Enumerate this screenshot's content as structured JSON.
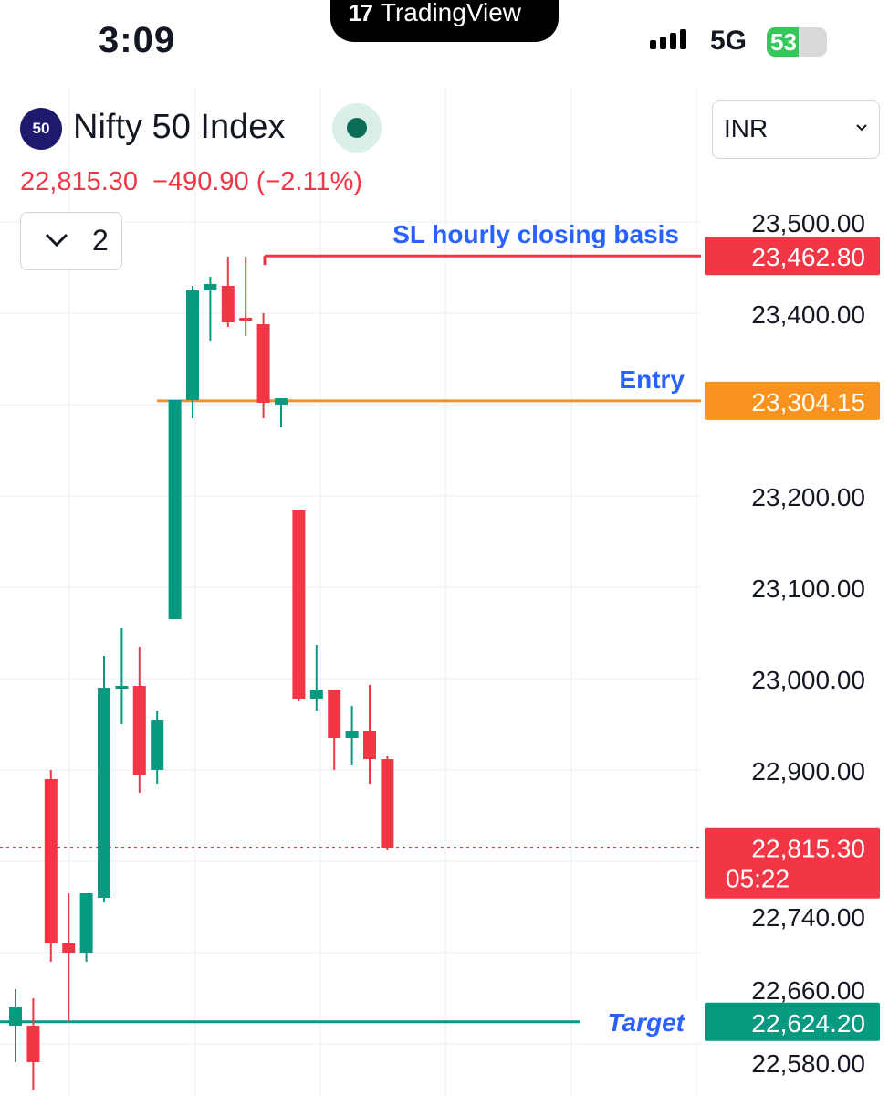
{
  "status_bar": {
    "time": "3:09",
    "app_pill": "TradingView",
    "network": "5G",
    "battery": "53"
  },
  "header": {
    "symbol_badge": "50",
    "title": "Nifty 50 Index",
    "price": "22,815.30",
    "change": "−490.90 (−2.11%)",
    "collapse_count": "2",
    "currency": "INR"
  },
  "colors": {
    "up": "#089981",
    "down": "#f23645",
    "entry": "#f7931e",
    "annotation": "#2962ff"
  },
  "annotations": {
    "sl_label": "SL hourly closing basis",
    "entry_label": "Entry",
    "target_label": "Target"
  },
  "chart_data": {
    "type": "candlestick",
    "yticks": [
      23500,
      23400,
      23200,
      23100,
      23000,
      22900,
      22740,
      22660,
      22580
    ],
    "ytick_labels": [
      "23,500.00",
      "23,400.00",
      "23,200.00",
      "23,100.00",
      "23,000.00",
      "22,900.00",
      "22,740.00",
      "22,660.00",
      "22,580.00"
    ],
    "levels": [
      {
        "name": "SL",
        "value": 23462.8,
        "label": "23,462.80",
        "color": "#f23645"
      },
      {
        "name": "Entry",
        "value": 23304.15,
        "label": "23,304.15",
        "color": "#f7931e"
      },
      {
        "name": "Target",
        "value": 22624.2,
        "label": "22,624.20",
        "color": "#089981"
      }
    ],
    "last_price": {
      "value": 22815.3,
      "label": "22,815.30",
      "countdown": "05:22"
    },
    "candles": [
      {
        "o": 22620,
        "h": 22660,
        "l": 22580,
        "c": 22640
      },
      {
        "o": 22620,
        "h": 22650,
        "l": 22550,
        "c": 22580
      },
      {
        "o": 22890,
        "h": 22900,
        "l": 22690,
        "c": 22710
      },
      {
        "o": 22710,
        "h": 22765,
        "l": 22625,
        "c": 22700
      },
      {
        "o": 22700,
        "h": 22765,
        "l": 22690,
        "c": 22765
      },
      {
        "o": 22760,
        "h": 23025,
        "l": 22755,
        "c": 22990
      },
      {
        "o": 22990,
        "h": 23055,
        "l": 22950,
        "c": 22992
      },
      {
        "o": 22992,
        "h": 23035,
        "l": 22875,
        "c": 22895
      },
      {
        "o": 22900,
        "h": 22965,
        "l": 22885,
        "c": 22955
      },
      {
        "o": 23065,
        "h": 23305,
        "l": 23065,
        "c": 23305
      },
      {
        "o": 23305,
        "h": 23430,
        "l": 23285,
        "c": 23425
      },
      {
        "o": 23425,
        "h": 23440,
        "l": 23370,
        "c": 23432
      },
      {
        "o": 23430,
        "h": 23462,
        "l": 23385,
        "c": 23390
      },
      {
        "o": 23395,
        "h": 23462,
        "l": 23375,
        "c": 23392
      },
      {
        "o": 23388,
        "h": 23400,
        "l": 23285,
        "c": 23302
      },
      {
        "o": 23300,
        "h": 23307,
        "l": 23275,
        "c": 23307
      },
      {
        "o": 23185,
        "h": 23185,
        "l": 22975,
        "c": 22978
      },
      {
        "o": 22978,
        "h": 23037,
        "l": 22965,
        "c": 22988
      },
      {
        "o": 22988,
        "h": 22988,
        "l": 22900,
        "c": 22935
      },
      {
        "o": 22935,
        "h": 22970,
        "l": 22905,
        "c": 22943
      },
      {
        "o": 22943,
        "h": 22993,
        "l": 22885,
        "c": 22912
      },
      {
        "o": 22912,
        "h": 22915,
        "l": 22812,
        "c": 22815
      }
    ]
  }
}
